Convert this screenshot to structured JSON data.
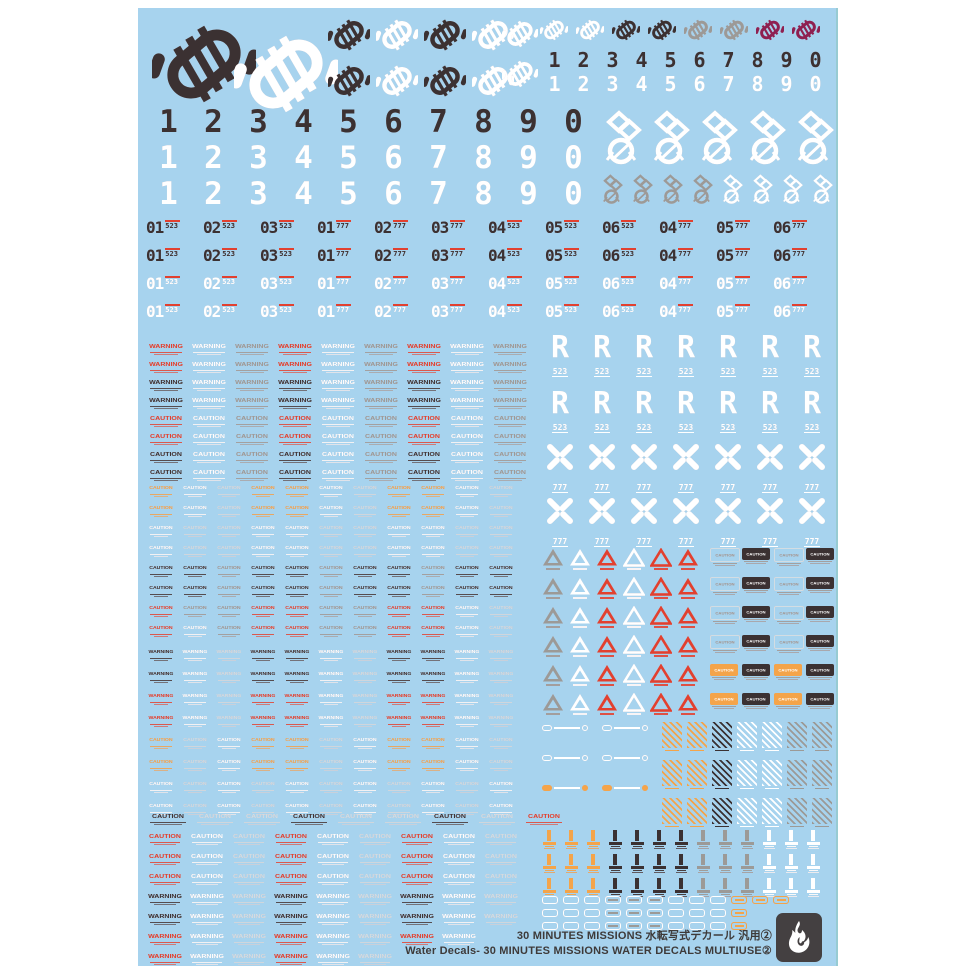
{
  "title": {
    "line1": "30 MINUTES MISSIONS 水転写式デカール 汎用②",
    "line2": "Water Decals- 30 MINUTES MISSIONS WATER DECALS MULTIUSE②"
  },
  "colors": {
    "sheet": "#a7d3ee",
    "dark": "#3b3132",
    "white": "#ffffff",
    "red": "#e2402f",
    "orange": "#f4a44a",
    "gray": "#9c9a97",
    "light": "#d3dde3",
    "maroon": "#8e2051",
    "footer_text": "#3e3a39",
    "logo_bg": "#444041"
  },
  "pattern_colors": {
    "r": "red",
    "w": "white",
    "g": "gray",
    "l": "light",
    "d": "dark",
    "o": "orange",
    "m": "maroon"
  },
  "labels": {
    "warning": "WARNING",
    "caution": "CAUTION",
    "r_glyph": "R",
    "r_sub": "523",
    "x_sub": "777"
  },
  "digits": [
    "1",
    "2",
    "3",
    "4",
    "5",
    "6",
    "7",
    "8",
    "9",
    "0"
  ],
  "digit_rows": {
    "small": "dw",
    "large": "dww"
  },
  "emblems": {
    "large": "dw",
    "medium": [
      "dwdw",
      "dwdw"
    ],
    "stack": "ww",
    "small": "wwddggmm",
    "crest_large_count": 5,
    "crest_small": "ggggwwww"
  },
  "callsign": {
    "rows": "ddww",
    "cells": [
      {
        "n": "01",
        "s": "523"
      },
      {
        "n": "02",
        "s": "523"
      },
      {
        "n": "03",
        "s": "523"
      },
      {
        "n": "01",
        "s": "777"
      },
      {
        "n": "02",
        "s": "777"
      },
      {
        "n": "03",
        "s": "777"
      },
      {
        "n": "04",
        "s": "523"
      },
      {
        "n": "05",
        "s": "523"
      },
      {
        "n": "06",
        "s": "523"
      },
      {
        "n": "04",
        "s": "777"
      },
      {
        "n": "05",
        "s": "777"
      },
      {
        "n": "06",
        "s": "777"
      }
    ]
  },
  "label_blocks": [
    {
      "rows": [
        {
          "t": "WARNING",
          "p": "rwgrwgrwg"
        },
        {
          "t": "WARNING",
          "p": "rwgrwgrwg"
        },
        {
          "t": "WARNING",
          "p": "dwgdwgdwg"
        },
        {
          "t": "WARNING",
          "p": "dwgdwgdwg"
        },
        {
          "t": "CAUTION",
          "p": "rwgrwgrwg"
        },
        {
          "t": "CAUTION",
          "p": "rwgrwgrwg"
        },
        {
          "t": "CAUTION",
          "p": "dwgdwgdwg"
        },
        {
          "t": "CAUTION",
          "p": "dwgdwgdwg"
        }
      ]
    },
    {
      "rows": [
        {
          "t": "CAUTION",
          "p": "owloowloowl"
        },
        {
          "t": "CAUTION",
          "p": "owloowloowl"
        },
        {
          "t": "CAUTION",
          "p": "wllwwllwwll"
        },
        {
          "t": "CAUTION",
          "p": "wllwwllwwll"
        },
        {
          "t": "CAUTION",
          "p": "ddgddgddgdd"
        },
        {
          "t": "CAUTION",
          "p": "ddgddgddgdd"
        },
        {
          "t": "CAUTION",
          "p": "rggrrggrrwl"
        },
        {
          "t": "CAUTION",
          "p": "rwgrrggrrwl"
        }
      ]
    },
    {
      "rows": [
        {
          "t": "WARNING",
          "p": "dwlddwlddwl"
        },
        {
          "t": "WARNING",
          "p": "dwlddwlddwl"
        },
        {
          "t": "WARNING",
          "p": "rwlrrwlrrwl"
        },
        {
          "t": "WARNING",
          "p": "rwlrrwlrrwl"
        },
        {
          "t": "CAUTION",
          "p": "olwoolwoowl"
        },
        {
          "t": "CAUTION",
          "p": "olwoolwoowl"
        },
        {
          "t": "CAUTION",
          "p": "wlwlwlwlwlw"
        },
        {
          "t": "CAUTION",
          "p": "wlwlwlwlwlw"
        }
      ]
    },
    {
      "rows": [
        {
          "t": "CAUTION",
          "p": "dlldlldlr"
        }
      ]
    },
    {
      "rows": [
        {
          "t": "CAUTION",
          "p": "rwlrwlrwl"
        },
        {
          "t": "CAUTION",
          "p": "rwlrwlrwl"
        },
        {
          "t": "CAUTION",
          "p": "rwlrwlrwl"
        },
        {
          "t": "WARNING",
          "p": "dwldwldwl"
        },
        {
          "t": "WARNING",
          "p": "dwldwldwl"
        },
        {
          "t": "WARNING",
          "p": "rwlrwlrw"
        },
        {
          "t": "WARNING",
          "p": "rwlrwl"
        }
      ]
    }
  ],
  "r_block": {
    "cols": 7,
    "rows": 2
  },
  "x_block": {
    "cols": 7,
    "rows": 2
  },
  "tri_block": {
    "rows": 6,
    "cols": [
      {
        "c": "gray",
        "f": true
      },
      {
        "c": "white",
        "f": true
      },
      {
        "c": "red",
        "f": true
      },
      {
        "c": "white",
        "f": false
      },
      {
        "c": "red",
        "f": false
      },
      {
        "c": "red",
        "f": true
      }
    ]
  },
  "cbox_block": {
    "label": "CAUTION",
    "rows": [
      "ldld",
      "ldld",
      "ldld",
      "ldld",
      "odod",
      "odod"
    ]
  },
  "strips": {
    "row_count": 3,
    "accent_row": 2
  },
  "hatch": {
    "row_count": 3,
    "cols": "oodwwgg"
  },
  "arrows": {
    "row_count": 3,
    "cols": "oooddddgggwww"
  },
  "mini_boxes": {
    "patterns": [
      "wwwtttwwwooo",
      "wwwtttwwwo",
      "wwwtttwwwo"
    ]
  }
}
